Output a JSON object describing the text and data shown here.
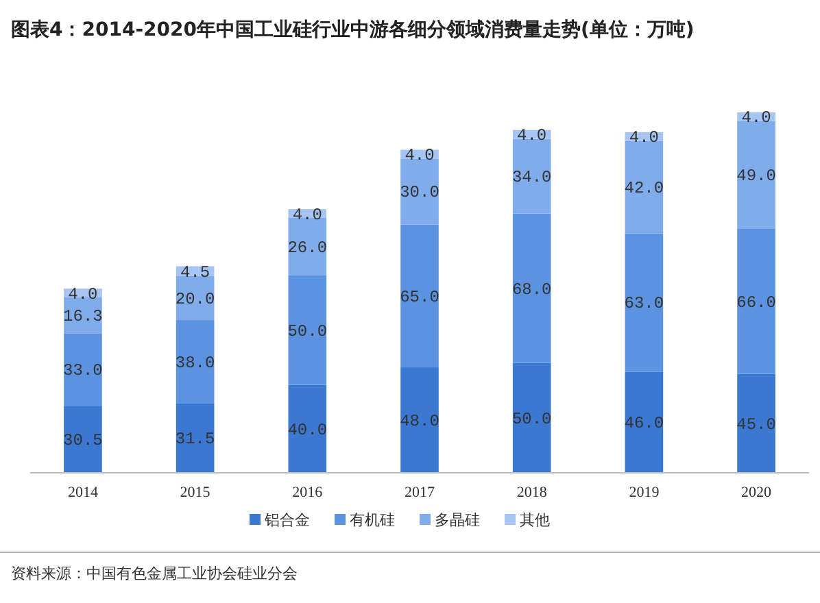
{
  "chart_data": {
    "type": "bar",
    "title": "图表4：2014-2020年中国工业硅行业中游各细分领域消费量走势(单位：万吨)",
    "categories": [
      "2014",
      "2015",
      "2016",
      "2017",
      "2018",
      "2019",
      "2020"
    ],
    "stacked": true,
    "legend": "bottom",
    "tick_labels": "x",
    "series": [
      {
        "name": "铝合金",
        "color": "#3b78d2",
        "values": [
          30.5,
          31.5,
          40,
          48,
          50,
          46,
          45
        ],
        "value_labels": [
          "30.5",
          "31.5",
          "40.0",
          "48.0",
          "50.0",
          "46.0",
          "45.0"
        ]
      },
      {
        "name": "有机硅",
        "color": "#5c93e0",
        "values": [
          33,
          38,
          50,
          65,
          68,
          63,
          66
        ],
        "value_labels": [
          "33.0",
          "38.0",
          "50.0",
          "65.0",
          "68.0",
          "63.0",
          "66.0"
        ]
      },
      {
        "name": "多晶硅",
        "color": "#80acec",
        "values": [
          16.3,
          20,
          26,
          30,
          34,
          42,
          49
        ],
        "value_labels": [
          "16.3",
          "20.0",
          "26.0",
          "30.0",
          "34.0",
          "42.0",
          "49.0"
        ]
      },
      {
        "name": "其他",
        "color": "#a6c5f3",
        "values": [
          4,
          4.5,
          4,
          4,
          4,
          4,
          4
        ],
        "value_labels": [
          "4.0",
          "4.5",
          "4.0",
          "4.0",
          "4.0",
          "4.0",
          "4.0"
        ]
      }
    ],
    "annotations": [
      "资料来源：中国有色金属工业协会硅业分会"
    ]
  }
}
